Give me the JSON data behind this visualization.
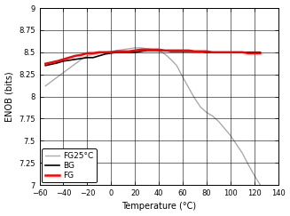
{
  "title": "",
  "xlabel": "Temperature (°C)",
  "ylabel": "ENOB (bits)",
  "xlim": [
    -60,
    140
  ],
  "ylim": [
    7,
    9
  ],
  "xticks": [
    -60,
    -40,
    -20,
    0,
    20,
    40,
    60,
    80,
    100,
    120,
    140
  ],
  "yticks": [
    7,
    7.25,
    7.5,
    7.75,
    8,
    8.25,
    8.5,
    8.75,
    9
  ],
  "bg_x": [
    -55,
    -45,
    -40,
    -35,
    -30,
    -25,
    -20,
    -15,
    -10,
    -5,
    0,
    5,
    10,
    15,
    20,
    25,
    30,
    35,
    40,
    45,
    50,
    55,
    60,
    65,
    70,
    75,
    80,
    85,
    90,
    95,
    100,
    105,
    110,
    115,
    120,
    125
  ],
  "bg_y": [
    8.35,
    8.38,
    8.4,
    8.41,
    8.42,
    8.43,
    8.44,
    8.44,
    8.46,
    8.48,
    8.49,
    8.5,
    8.5,
    8.5,
    8.5,
    8.51,
    8.52,
    8.52,
    8.52,
    8.52,
    8.51,
    8.51,
    8.51,
    8.51,
    8.51,
    8.51,
    8.5,
    8.5,
    8.5,
    8.5,
    8.5,
    8.5,
    8.5,
    8.5,
    8.5,
    8.5
  ],
  "fg_x": [
    -55,
    -45,
    -40,
    -35,
    -30,
    -25,
    -20,
    -15,
    -10,
    -5,
    0,
    5,
    10,
    15,
    20,
    25,
    30,
    35,
    40,
    45,
    50,
    55,
    60,
    65,
    70,
    75,
    80,
    85,
    90,
    95,
    100,
    105,
    110,
    115,
    120,
    125
  ],
  "fg_y": [
    8.37,
    8.4,
    8.42,
    8.44,
    8.46,
    8.47,
    8.49,
    8.49,
    8.5,
    8.5,
    8.5,
    8.51,
    8.51,
    8.51,
    8.52,
    8.53,
    8.53,
    8.53,
    8.53,
    8.52,
    8.52,
    8.52,
    8.52,
    8.52,
    8.51,
    8.51,
    8.51,
    8.5,
    8.5,
    8.5,
    8.5,
    8.5,
    8.5,
    8.49,
    8.49,
    8.49
  ],
  "fg25_x": [
    -55,
    -45,
    -35,
    -25,
    -20,
    -15,
    -10,
    -5,
    0,
    5,
    10,
    15,
    20,
    25,
    30,
    35,
    40,
    45,
    50,
    55,
    60,
    65,
    70,
    75,
    80,
    85,
    90,
    95,
    100,
    105,
    110,
    115,
    120,
    125
  ],
  "fg25_y": [
    8.12,
    8.22,
    8.32,
    8.42,
    8.46,
    8.48,
    8.49,
    8.5,
    8.51,
    8.52,
    8.53,
    8.54,
    8.55,
    8.55,
    8.54,
    8.53,
    8.52,
    8.48,
    8.42,
    8.35,
    8.22,
    8.1,
    7.98,
    7.88,
    7.82,
    7.78,
    7.72,
    7.64,
    7.56,
    7.46,
    7.36,
    7.23,
    7.11,
    7.0
  ],
  "bg_color": "#000000",
  "fg_color": "#ff0000",
  "fg25_color": "#aaaaaa",
  "bg_label": "BG",
  "fg_label": "FG",
  "fg25_label": "FG25°C",
  "bg_lw": 1.2,
  "fg_lw": 1.8,
  "fg25_lw": 1.0,
  "legend_loc": "lower left",
  "legend_fontsize": 6.5,
  "tick_fontsize": 6,
  "label_fontsize": 7,
  "grid_color": "#000000",
  "grid_alpha": 1.0,
  "grid_lw": 0.4
}
